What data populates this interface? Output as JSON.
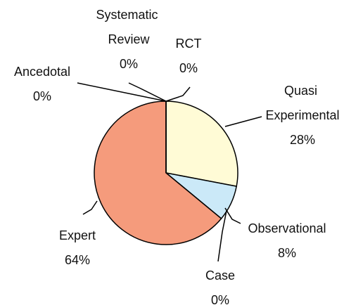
{
  "chart_data": {
    "type": "pie",
    "categories": [
      "RCT",
      "Quasi Experimental",
      "Observational",
      "Case",
      "Expert",
      "Ancedotal",
      "Systematic Review"
    ],
    "values": [
      0,
      28,
      8,
      0,
      64,
      0,
      0
    ],
    "value_labels": [
      "0%",
      "28%",
      "8%",
      "0%",
      "64%",
      "0%",
      "0%"
    ],
    "colors": [
      "#ffffff",
      "#fffbd6",
      "#cbe9f8",
      "#ffffff",
      "#f59b7c",
      "#ffffff",
      "#ffffff"
    ]
  }
}
